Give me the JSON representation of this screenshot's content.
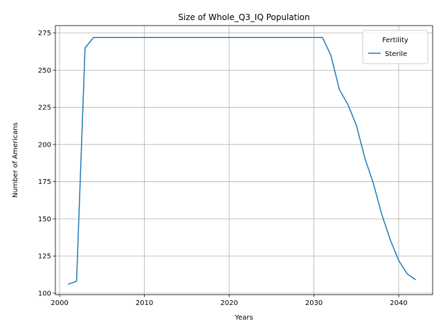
{
  "chart_data": {
    "type": "line",
    "title": "Size of Whole_Q3_IQ Population",
    "xlabel": "Years",
    "ylabel": "Number of Americans",
    "xlim": [
      1999.5,
      2044
    ],
    "ylim": [
      99,
      280
    ],
    "x_ticks": [
      2000,
      2010,
      2020,
      2030,
      2040
    ],
    "x_tick_labels": [
      "2000",
      "2010",
      "2020",
      "2030",
      "2040"
    ],
    "y_ticks": [
      100,
      125,
      150,
      175,
      200,
      225,
      250,
      275
    ],
    "y_tick_labels": [
      "100",
      "125",
      "150",
      "175",
      "200",
      "225",
      "250",
      "275"
    ],
    "grid": true,
    "legend": {
      "title": "Fertility",
      "location": "top-right"
    },
    "series": [
      {
        "name": "Sterile",
        "color": "#1f77b4",
        "x": [
          2001,
          2002,
          2003,
          2004,
          2005,
          2006,
          2007,
          2008,
          2009,
          2010,
          2011,
          2012,
          2013,
          2014,
          2015,
          2016,
          2017,
          2018,
          2019,
          2020,
          2021,
          2022,
          2023,
          2024,
          2025,
          2026,
          2027,
          2028,
          2029,
          2030,
          2031,
          2032,
          2033,
          2034,
          2035,
          2036,
          2037,
          2038,
          2039,
          2040,
          2041,
          2042
        ],
        "y": [
          106,
          108,
          265,
          272,
          272,
          272,
          272,
          272,
          272,
          272,
          272,
          272,
          272,
          272,
          272,
          272,
          272,
          272,
          272,
          272,
          272,
          272,
          272,
          272,
          272,
          272,
          272,
          272,
          272,
          272,
          272,
          260,
          237,
          227,
          213,
          191,
          174,
          153,
          136,
          122,
          113,
          109
        ]
      }
    ]
  }
}
